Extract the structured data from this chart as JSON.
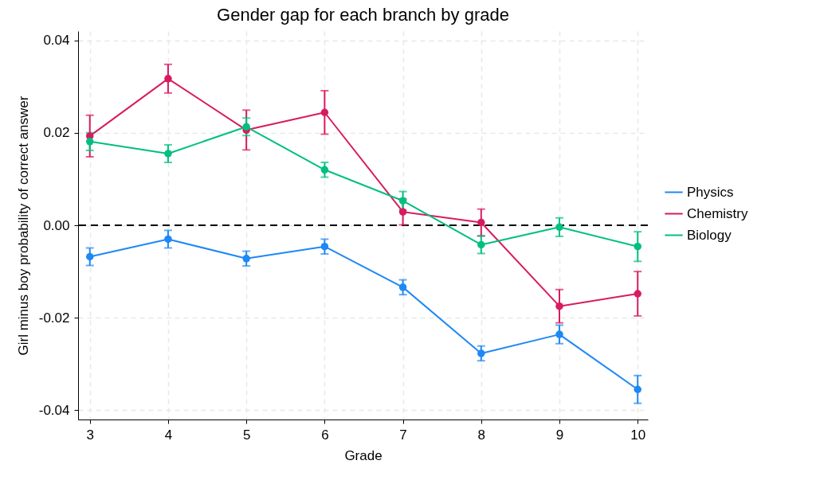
{
  "chart_data": {
    "type": "line",
    "title": "Gender gap for each branch by grade",
    "xlabel": "Grade",
    "ylabel": "Girl minus boy probability of correct answer",
    "x": [
      3,
      4,
      5,
      6,
      7,
      8,
      9,
      10
    ],
    "series": [
      {
        "name": "Physics",
        "color": "#1e88f5",
        "values": [
          -0.0068,
          -0.003,
          -0.0072,
          -0.0046,
          -0.0134,
          -0.0277,
          -0.0236,
          -0.0355
        ],
        "errors": [
          0.0019,
          0.0019,
          0.0016,
          0.0016,
          0.0016,
          0.0016,
          0.002,
          0.003
        ]
      },
      {
        "name": "Chemistry",
        "color": "#d81b60",
        "values": [
          0.0193,
          0.0317,
          0.0206,
          0.0244,
          0.0029,
          0.0006,
          -0.0175,
          -0.0148
        ],
        "errors": [
          0.0045,
          0.0031,
          0.0043,
          0.0047,
          0.0028,
          0.0029,
          0.0036,
          0.0048
        ]
      },
      {
        "name": "Biology",
        "color": "#00c07f",
        "values": [
          0.0181,
          0.0155,
          0.0213,
          0.012,
          0.0053,
          -0.0042,
          -0.0004,
          -0.0046
        ],
        "errors": [
          0.0019,
          0.0019,
          0.0019,
          0.0016,
          0.002,
          0.0019,
          0.002,
          0.0032
        ]
      }
    ],
    "xlim": [
      2.85,
      10.13
    ],
    "ylim": [
      -0.042,
      0.042
    ],
    "xticks": [
      3,
      4,
      5,
      6,
      7,
      8,
      9,
      10
    ],
    "yticks": [
      -0.04,
      -0.02,
      {
        "value": 0,
        "label": "0.00"
      },
      0.02,
      0.04
    ],
    "ref_lines": [
      {
        "axis": "y",
        "value": 0,
        "color": "#000000",
        "line_style": "dashed"
      }
    ],
    "grid": true,
    "legend": "right",
    "marker": "circle",
    "line_style": "solid"
  }
}
